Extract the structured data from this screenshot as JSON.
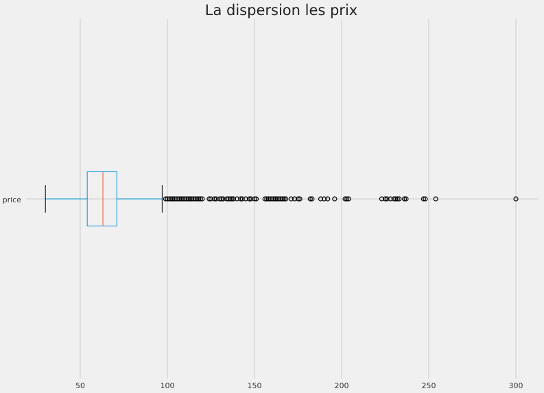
{
  "chart_data": {
    "type": "boxplot",
    "title": "La dispersion les prix",
    "orientation": "horizontal",
    "category_labels": [
      "price"
    ],
    "x_ticks": [
      50,
      100,
      150,
      200,
      250,
      300
    ],
    "xlim": [
      20,
      312
    ],
    "grid": true,
    "box": {
      "whisker_low": 30,
      "q1": 54,
      "median": 63,
      "q3": 71,
      "whisker_high": 97
    },
    "outliers": [
      99,
      100,
      101,
      102,
      103,
      104,
      105,
      106,
      107,
      108,
      109,
      110,
      111,
      112,
      113,
      114,
      115,
      116,
      117,
      118,
      119,
      120,
      124,
      125,
      127,
      128,
      130,
      131,
      132,
      134,
      135,
      136,
      137,
      138,
      140,
      142,
      143,
      145,
      147,
      148,
      150,
      151,
      156,
      157,
      158,
      159,
      160,
      161,
      162,
      163,
      164,
      165,
      166,
      167,
      168,
      171,
      173,
      175,
      176,
      182,
      183,
      188,
      190,
      192,
      196,
      202,
      203,
      204,
      223,
      225,
      226,
      228,
      230,
      231,
      232,
      233,
      236,
      237,
      247,
      248,
      254,
      300
    ],
    "colors": {
      "background": "#f0f0f0",
      "grid": "#cbcbcb",
      "box": "#008fd5",
      "median": "#fc4f30",
      "whisker_cap": "#000000",
      "flier": "#000000"
    }
  }
}
